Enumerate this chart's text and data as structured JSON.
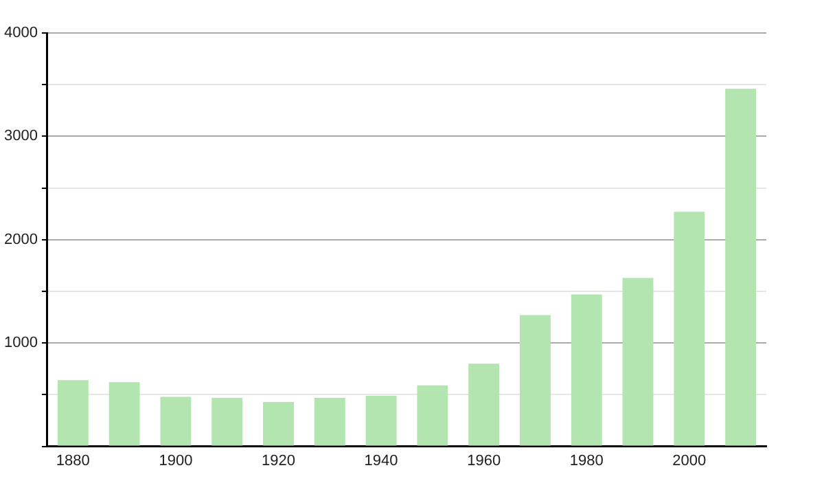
{
  "chart_data": {
    "type": "bar",
    "categories": [
      "1880",
      null,
      "1900",
      null,
      "1920",
      null,
      "1940",
      null,
      "1960",
      null,
      "1980",
      null,
      "2000",
      null
    ],
    "values": [
      640,
      620,
      480,
      470,
      430,
      470,
      490,
      590,
      800,
      1270,
      1470,
      1630,
      2270,
      3460
    ],
    "color": "#b2e5b0",
    "ylim": [
      0,
      4000
    ],
    "yticks": [
      {
        "value": 0,
        "label": null
      },
      {
        "value": 500,
        "label": null
      },
      1000,
      {
        "value": 1500,
        "label": null
      },
      2000,
      {
        "value": 2500,
        "label": null
      },
      3000,
      {
        "value": 3500,
        "label": null
      },
      4000
    ],
    "grid": "y"
  }
}
